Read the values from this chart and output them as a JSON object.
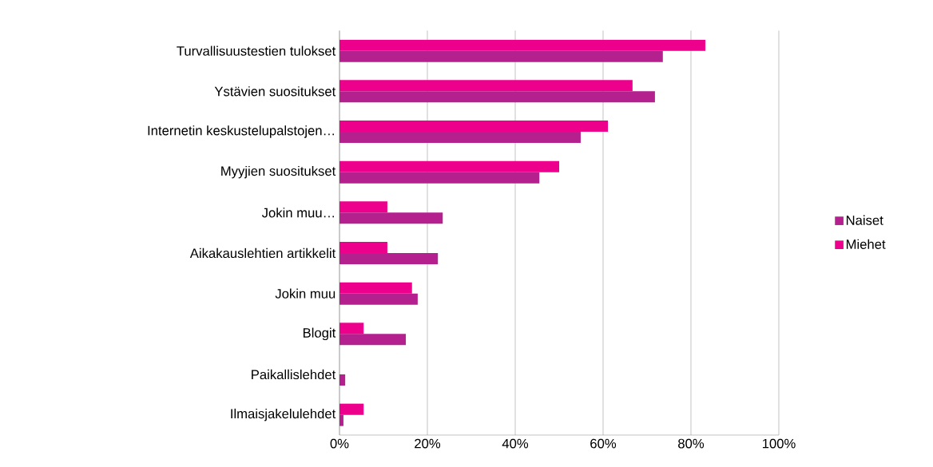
{
  "chart_data": {
    "type": "bar",
    "orientation": "horizontal",
    "categories": [
      "Turvallisuustestien tulokset",
      "Ystävien suositukset",
      "Internetin keskustelupalstojen…",
      "Myyjien suositukset",
      "Jokin muu…",
      "Aikakauslehtien artikkelit",
      "Jokin muu",
      "Blogit",
      "Paikallislehdet",
      "Ilmaisjakelulehdet"
    ],
    "series": [
      {
        "name": "Naiset",
        "color": "#b5208f",
        "values": [
          73.6,
          71.8,
          54.9,
          45.5,
          23.5,
          22.4,
          17.8,
          15.1,
          1.3,
          0.9
        ]
      },
      {
        "name": "Miehet",
        "color": "#ec008c",
        "values": [
          83.3,
          66.7,
          61.1,
          50,
          10.9,
          10.9,
          16.5,
          5.5,
          0,
          5.5
        ]
      }
    ],
    "xlim": [
      0,
      100
    ],
    "xticks": [
      {
        "value": 0,
        "label": "0%"
      },
      {
        "value": 20,
        "label": "20%"
      },
      {
        "value": 40,
        "label": "40%"
      },
      {
        "value": 60,
        "label": "60%"
      },
      {
        "value": 80,
        "label": "80%"
      },
      {
        "value": 100,
        "label": "100%"
      }
    ],
    "grid": "x",
    "legend": "right"
  }
}
